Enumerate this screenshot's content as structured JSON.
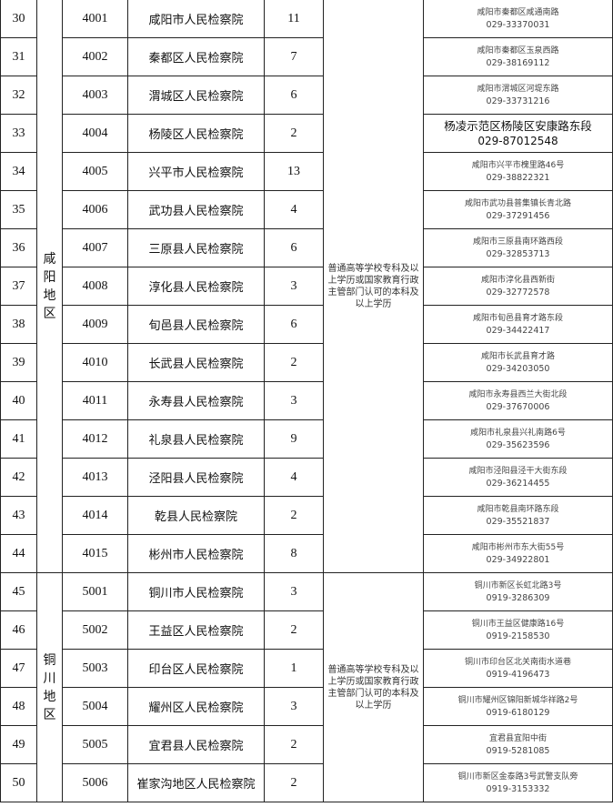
{
  "groups": [
    {
      "region": "咸阳地区",
      "requirement": "普通高等学校专科及以上学历或国家教育行政主管部门认可的本科及以上学历",
      "rows": [
        {
          "seq": "30",
          "code": "4001",
          "name": "咸阳市人民检察院",
          "count": "11",
          "address": "咸阳市秦都区咸通南路",
          "phone": "029-33370031"
        },
        {
          "seq": "31",
          "code": "4002",
          "name": "秦都区人民检察院",
          "count": "7",
          "address": "咸阳市秦都区玉泉西路",
          "phone": "029-38169112"
        },
        {
          "seq": "32",
          "code": "4003",
          "name": "渭城区人民检察院",
          "count": "6",
          "address": "咸阳市渭城区河堤东路",
          "phone": "029-33731216"
        },
        {
          "seq": "33",
          "code": "4004",
          "name": "杨陵区人民检察院",
          "count": "2",
          "address": "杨凌示范区杨陵区安康路东段",
          "phone": "029-87012548",
          "big": true
        },
        {
          "seq": "34",
          "code": "4005",
          "name": "兴平市人民检察院",
          "count": "13",
          "address": "咸阳市兴平市槐里路46号",
          "phone": "029-38822321"
        },
        {
          "seq": "35",
          "code": "4006",
          "name": "武功县人民检察院",
          "count": "4",
          "address": "咸阳市武功县普集镇长青北路",
          "phone": "029-37291456"
        },
        {
          "seq": "36",
          "code": "4007",
          "name": "三原县人民检察院",
          "count": "6",
          "address": "咸阳市三原县南环路西段",
          "phone": "029-32853713"
        },
        {
          "seq": "37",
          "code": "4008",
          "name": "淳化县人民检察院",
          "count": "3",
          "address": "咸阳市淳化县西新街",
          "phone": "029-32772578"
        },
        {
          "seq": "38",
          "code": "4009",
          "name": "旬邑县人民检察院",
          "count": "6",
          "address": "咸阳市旬邑县育才路东段",
          "phone": "029-34422417"
        },
        {
          "seq": "39",
          "code": "4010",
          "name": "长武县人民检察院",
          "count": "2",
          "address": "咸阳市长武县育才路",
          "phone": "029-34203050"
        },
        {
          "seq": "40",
          "code": "4011",
          "name": "永寿县人民检察院",
          "count": "3",
          "address": "咸阳市永寿县西兰大街北段",
          "phone": "029-37670006"
        },
        {
          "seq": "41",
          "code": "4012",
          "name": "礼泉县人民检察院",
          "count": "9",
          "address": "咸阳市礼泉县兴礼南路6号",
          "phone": "029-35623596"
        },
        {
          "seq": "42",
          "code": "4013",
          "name": "泾阳县人民检察院",
          "count": "4",
          "address": "咸阳市泾阳县泾干大街东段",
          "phone": "029-36214455"
        },
        {
          "seq": "43",
          "code": "4014",
          "name": "乾县人民检察院",
          "count": "2",
          "address": "咸阳市乾县南环路东段",
          "phone": "029-35521837"
        },
        {
          "seq": "44",
          "code": "4015",
          "name": "彬州市人民检察院",
          "count": "8",
          "address": "咸阳市彬州市东大街55号",
          "phone": "029-34922801"
        }
      ]
    },
    {
      "region": "铜川地区",
      "requirement": "普通高等学校专科及以上学历或国家教育行政主管部门认可的本科及以上学历",
      "rows": [
        {
          "seq": "45",
          "code": "5001",
          "name": "铜川市人民检察院",
          "count": "3",
          "address": "铜川市新区长虹北路3号",
          "phone": "0919-3286309"
        },
        {
          "seq": "46",
          "code": "5002",
          "name": "王益区人民检察院",
          "count": "2",
          "address": "铜川市王益区健康路16号",
          "phone": "0919-2158530"
        },
        {
          "seq": "47",
          "code": "5003",
          "name": "印台区人民检察院",
          "count": "1",
          "address": "铜川市印台区北关南街水道巷",
          "phone": "0919-4196473"
        },
        {
          "seq": "48",
          "code": "5004",
          "name": "耀州区人民检察院",
          "count": "3",
          "address": "铜川市耀州区锦阳新城华祥路2号",
          "phone": "0919-6180129"
        },
        {
          "seq": "49",
          "code": "5005",
          "name": "宜君县人民检察院",
          "count": "2",
          "address": "宜君县宜阳中街",
          "phone": "0919-5281085"
        },
        {
          "seq": "50",
          "code": "5006",
          "name": "崔家沟地区人民检察院",
          "count": "2",
          "address": "铜川市新区金泰路3号武警支队旁",
          "phone": "0919-3153332"
        }
      ]
    }
  ]
}
